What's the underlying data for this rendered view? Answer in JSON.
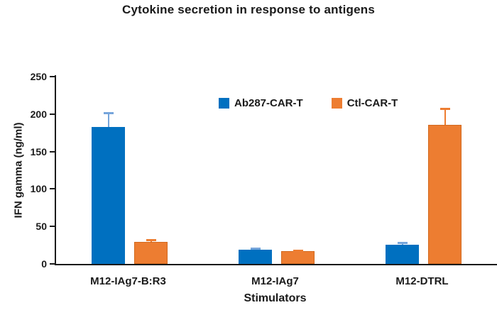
{
  "chart_data": {
    "type": "bar",
    "title": "Cytokine secretion in response to antigens",
    "xlabel": "Stimulators",
    "ylabel": "IFN gamma (ng/ml)",
    "categories": [
      "M12-IAg7-B:R3",
      "M12-IAg7",
      "M12-DTRL"
    ],
    "series": [
      {
        "name": "Ab287-CAR-T",
        "color": "#0070C0",
        "error_color": "#76A5DB",
        "values": [
          183,
          19,
          26
        ],
        "errors_plus": [
          20,
          2.5,
          3
        ]
      },
      {
        "name": "Ctl-CAR-T",
        "color": "#ED7D31",
        "border_color": "#D2691E",
        "error_color": "#ED7D31",
        "values": [
          29,
          17,
          186
        ],
        "errors_plus": [
          4,
          2,
          22
        ]
      }
    ],
    "ylim": [
      0,
      250
    ],
    "yticks": [
      0,
      50,
      100,
      150,
      200,
      250
    ],
    "legend_position": "top-center-inside",
    "grid": false,
    "axis_color": "#1a1a1a"
  }
}
